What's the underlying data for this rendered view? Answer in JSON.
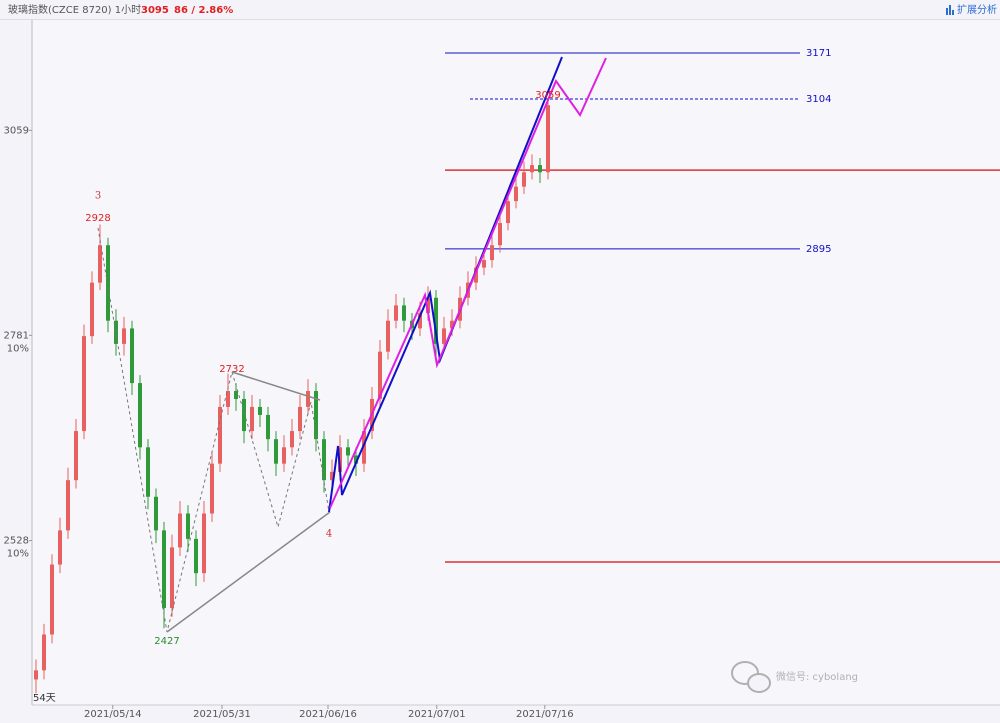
{
  "chart_data": {
    "type": "candlestick",
    "header": {
      "title": "玻璃指数(CZCE 8720) 1小时",
      "last": "3095",
      "change": "86 / 2.86%",
      "tool": "扩展分析"
    },
    "log_scale": true,
    "ylim": [
      2342,
      3220
    ],
    "yticks": [
      3059,
      2781,
      2528
    ],
    "ytick_sublabels": [
      null,
      "10%",
      "10%"
    ],
    "xlim": [
      -0.5,
      120.5
    ],
    "xticks": [
      {
        "value": 9.6,
        "label": "2021/05/14"
      },
      {
        "value": 23.25,
        "label": "2021/05/31"
      },
      {
        "value": 36.5,
        "label": "2021/06/16"
      },
      {
        "value": 50.1,
        "label": "2021/07/01"
      },
      {
        "value": 63.6,
        "label": "2021/07/16"
      }
    ],
    "up_color": "#e8605f",
    "down_color": "#2e9a3a",
    "open": [
      2370,
      2380,
      2420,
      2500,
      2540,
      2600,
      2660,
      2780,
      2850,
      2900,
      2800,
      2770,
      2790,
      2720,
      2640,
      2580,
      2540,
      2450,
      2520,
      2560,
      2530,
      2490,
      2560,
      2620,
      2690,
      2710,
      2700,
      2660,
      2690,
      2680,
      2650,
      2620,
      2640,
      2660,
      2690,
      2710,
      2650,
      2600,
      2610,
      2640,
      2630,
      2620,
      2660,
      2700,
      2760,
      2800,
      2820,
      2800,
      2790,
      2810,
      2830,
      2770,
      2790,
      2800,
      2830,
      2850,
      2870,
      2880,
      2900,
      2930,
      2960,
      2980,
      3000,
      3010,
      3000
    ],
    "close": [
      2380,
      2420,
      2500,
      2540,
      2600,
      2660,
      2780,
      2850,
      2900,
      2800,
      2770,
      2790,
      2720,
      2640,
      2580,
      2540,
      2450,
      2520,
      2560,
      2530,
      2490,
      2560,
      2620,
      2690,
      2710,
      2700,
      2660,
      2690,
      2680,
      2650,
      2620,
      2640,
      2660,
      2690,
      2710,
      2650,
      2600,
      2610,
      2640,
      2630,
      2620,
      2660,
      2700,
      2760,
      2800,
      2820,
      2800,
      2790,
      2810,
      2830,
      2770,
      2790,
      2800,
      2830,
      2850,
      2870,
      2880,
      2900,
      2930,
      2960,
      2980,
      3000,
      3010,
      3000,
      3095
    ],
    "high": [
      2392,
      2432,
      2512,
      2555,
      2615,
      2675,
      2795,
      2865,
      2928,
      2910,
      2815,
      2805,
      2800,
      2730,
      2650,
      2590,
      2550,
      2535,
      2575,
      2570,
      2540,
      2575,
      2635,
      2705,
      2732,
      2720,
      2710,
      2705,
      2700,
      2690,
      2660,
      2655,
      2675,
      2705,
      2725,
      2720,
      2660,
      2625,
      2655,
      2650,
      2640,
      2675,
      2715,
      2775,
      2815,
      2835,
      2830,
      2810,
      2825,
      2845,
      2840,
      2805,
      2815,
      2845,
      2865,
      2885,
      2895,
      2915,
      2945,
      2975,
      2995,
      3015,
      3025,
      3020,
      3105
    ],
    "low": [
      2355,
      2370,
      2410,
      2490,
      2530,
      2590,
      2650,
      2770,
      2840,
      2785,
      2755,
      2755,
      2705,
      2625,
      2565,
      2525,
      2427,
      2440,
      2510,
      2515,
      2475,
      2480,
      2550,
      2610,
      2680,
      2685,
      2645,
      2650,
      2665,
      2635,
      2605,
      2610,
      2630,
      2650,
      2680,
      2635,
      2585,
      2590,
      2600,
      2615,
      2605,
      2610,
      2650,
      2690,
      2750,
      2790,
      2785,
      2775,
      2780,
      2800,
      2755,
      2760,
      2780,
      2790,
      2820,
      2840,
      2860,
      2870,
      2890,
      2920,
      2950,
      2970,
      2990,
      2985,
      2990
    ],
    "levels": [
      {
        "value": 3171,
        "color": "#1010c8",
        "dashed": false
      },
      {
        "value": 3104,
        "color": "#1010c8",
        "dashed": true
      },
      {
        "value": 2895,
        "color": "#1010c8",
        "dashed": false
      }
    ],
    "zones": [
      {
        "value": 3003,
        "color": "#e03030"
      },
      {
        "value": 2503,
        "color": "#e03030"
      }
    ],
    "annotations": [
      "3",
      "2928",
      "2732",
      "2427",
      "4",
      "3059",
      "54天"
    ],
    "watermark": "微信号: cybolang"
  }
}
